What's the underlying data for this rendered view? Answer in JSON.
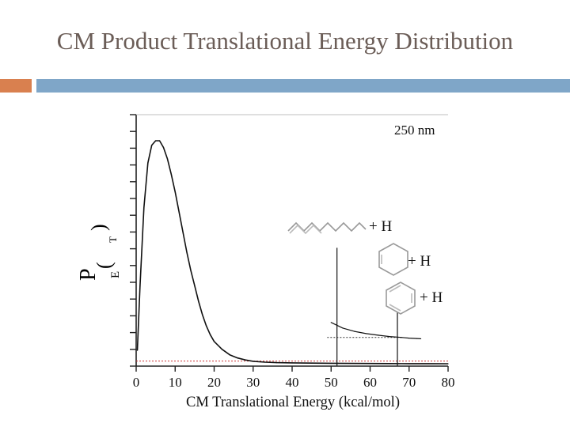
{
  "slide": {
    "title": "CM Product Translational Energy Distribution",
    "accent_color": "#d9804f",
    "bar_color": "#7fa6c8"
  },
  "chart_data": {
    "type": "line",
    "title": "",
    "annotation": "250 nm",
    "xlabel": "CM Translational Energy (kcal/mol)",
    "ylabel": "P(E_T)",
    "xlim": [
      0,
      80
    ],
    "x_ticks": [
      0,
      10,
      20,
      30,
      40,
      50,
      60,
      70,
      80
    ],
    "y_ticks_count": 16,
    "series": [
      {
        "x": [
          0.3,
          1,
          2,
          3,
          4,
          5,
          6,
          7,
          8,
          9,
          10,
          11,
          12,
          13,
          14,
          15,
          16,
          17,
          18,
          19,
          20,
          22,
          24,
          26,
          28,
          30,
          33,
          36,
          40,
          45,
          50,
          55,
          60,
          65,
          70,
          75,
          80
        ],
        "y": [
          0.06,
          0.35,
          0.7,
          0.9,
          0.98,
          1.0,
          1.0,
          0.97,
          0.92,
          0.85,
          0.77,
          0.68,
          0.59,
          0.5,
          0.42,
          0.35,
          0.28,
          0.22,
          0.17,
          0.13,
          0.1,
          0.065,
          0.04,
          0.026,
          0.017,
          0.011,
          0.007,
          0.005,
          0.004,
          0.003,
          0.002,
          0.0015,
          0.001,
          0.0007,
          0.0004,
          0.0002,
          0.0
        ]
      },
      {
        "x": [
          50,
          53,
          56,
          59,
          62,
          65,
          68,
          70,
          72,
          73
        ],
        "y": [
          0.185,
          0.16,
          0.145,
          0.135,
          0.128,
          0.122,
          0.118,
          0.115,
          0.113,
          0.112
        ]
      }
    ],
    "reference_lines": [
      {
        "type": "horizontal",
        "y": 0.012,
        "x_range": [
          0,
          80
        ],
        "color": "#cc3333",
        "style": "dotted"
      },
      {
        "type": "horizontal",
        "y": 0.118,
        "x_range": [
          49,
          68
        ],
        "color": "#333333",
        "style": "dotted"
      },
      {
        "type": "vertical",
        "x": 51.5,
        "y_top": 0.52,
        "label": "+ H"
      },
      {
        "type": "vertical",
        "x": 67,
        "y_top": 0.23,
        "label": "+ H"
      }
    ],
    "molecule_labels": [
      "+ H",
      "+ H",
      "+ H"
    ]
  }
}
